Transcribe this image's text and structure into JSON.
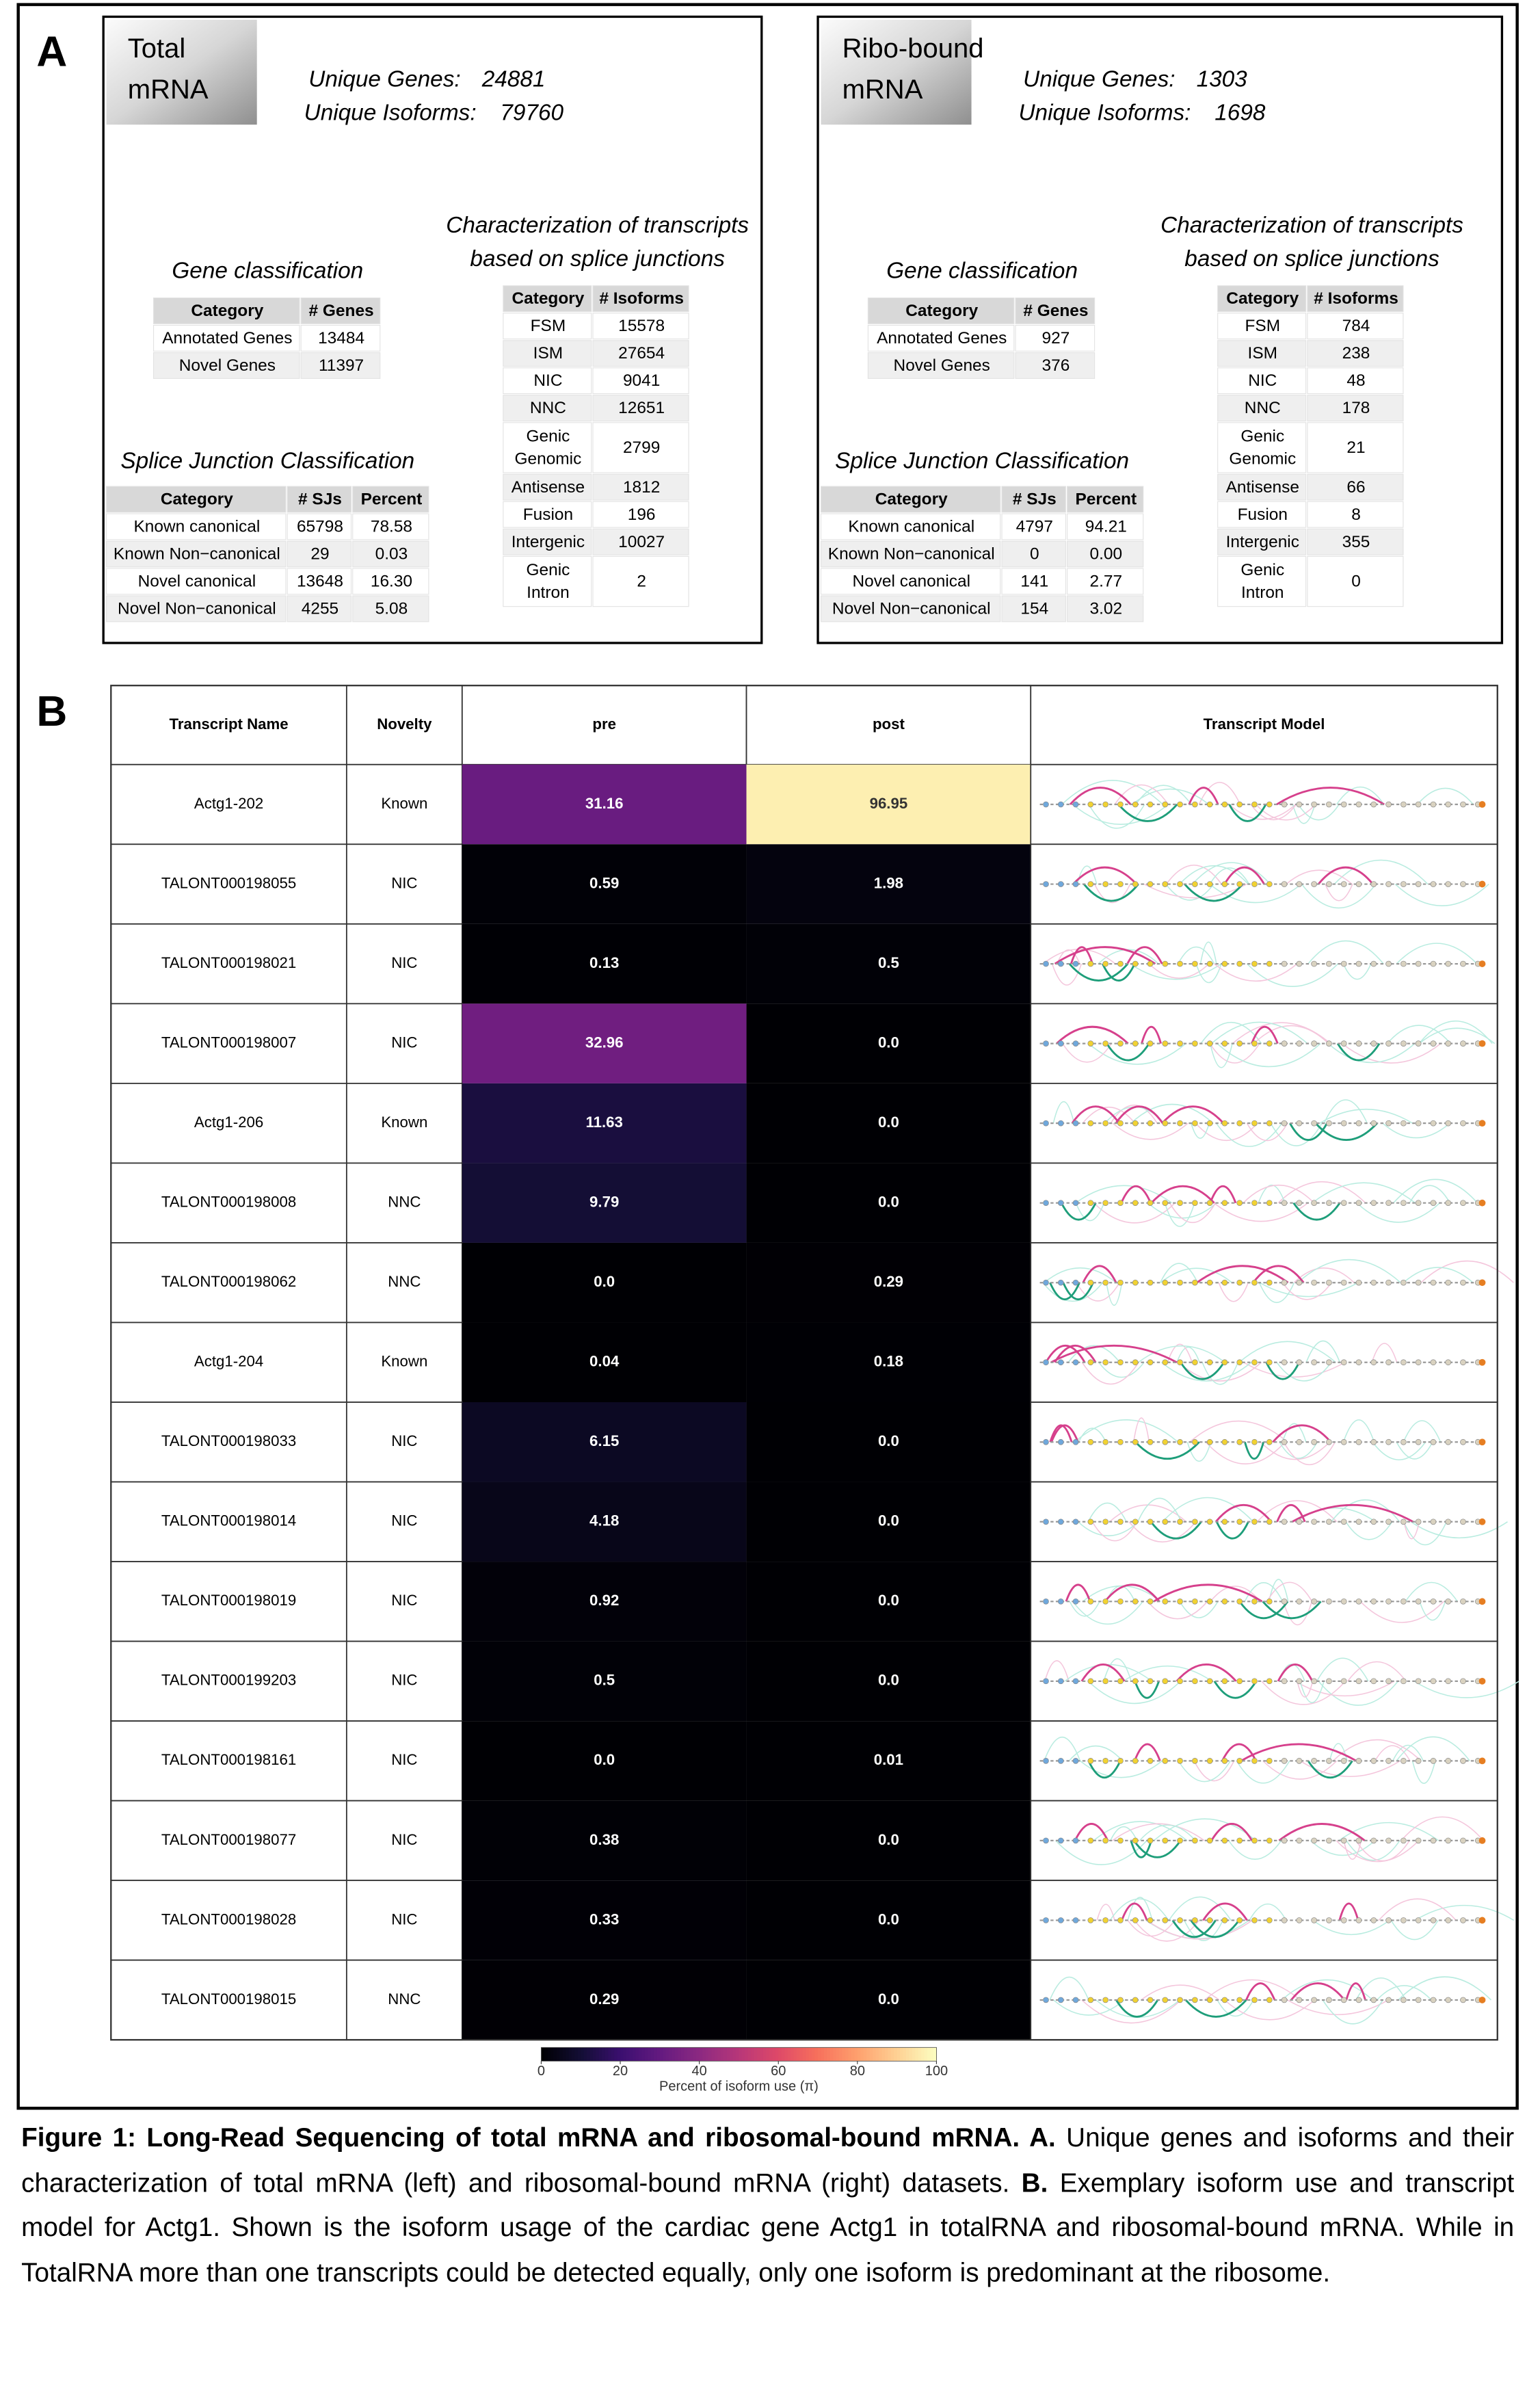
{
  "panel_a": {
    "label": "A",
    "datasets": [
      {
        "title": [
          "Total",
          "mRNA"
        ],
        "unique_genes": {
          "label": "Unique Genes:",
          "value": 24881
        },
        "unique_isoforms": {
          "label": "Unique Isoforms:",
          "value": 79760
        },
        "gene_classification": {
          "title": "Gene classification",
          "header": [
            "Category",
            "# Genes"
          ],
          "rows": [
            [
              "Annotated Genes",
              13484
            ],
            [
              "Novel Genes",
              11397
            ]
          ]
        },
        "splice_junction": {
          "title": "Splice Junction Classification",
          "header": [
            "Category",
            "# SJs",
            "Percent"
          ],
          "rows": [
            [
              "Known canonical",
              65798,
              78.58
            ],
            [
              "Known Non−canonical",
              29,
              0.03
            ],
            [
              "Novel canonical",
              13648,
              "16.30"
            ],
            [
              "Novel Non−canonical",
              4255,
              5.08
            ]
          ]
        },
        "characterization": {
          "title": [
            "Characterization of transcripts",
            "based on splice junctions"
          ],
          "header": [
            "Category",
            "# Isoforms"
          ],
          "rows": [
            [
              [
                "FSM"
              ],
              15578
            ],
            [
              [
                "ISM"
              ],
              27654
            ],
            [
              [
                "NIC"
              ],
              9041
            ],
            [
              [
                "NNC"
              ],
              12651
            ],
            [
              [
                "Genic",
                "Genomic"
              ],
              2799
            ],
            [
              [
                "Antisense"
              ],
              1812
            ],
            [
              [
                "Fusion"
              ],
              196
            ],
            [
              [
                "Intergenic"
              ],
              10027
            ],
            [
              [
                "Genic",
                "Intron"
              ],
              2
            ]
          ]
        }
      },
      {
        "title": [
          "Ribo-bound",
          "mRNA"
        ],
        "unique_genes": {
          "label": "Unique Genes:",
          "value": 1303
        },
        "unique_isoforms": {
          "label": "Unique Isoforms:",
          "value": 1698
        },
        "gene_classification": {
          "title": "Gene classification",
          "header": [
            "Category",
            "# Genes"
          ],
          "rows": [
            [
              "Annotated Genes",
              927
            ],
            [
              "Novel Genes",
              376
            ]
          ]
        },
        "splice_junction": {
          "title": "Splice Junction Classification",
          "header": [
            "Category",
            "# SJs",
            "Percent"
          ],
          "rows": [
            [
              "Known canonical",
              4797,
              94.21
            ],
            [
              "Known Non−canonical",
              0,
              "0.00"
            ],
            [
              "Novel canonical",
              141,
              2.77
            ],
            [
              "Novel Non−canonical",
              154,
              3.02
            ]
          ]
        },
        "characterization": {
          "title": [
            "Characterization of transcripts",
            "based on splice junctions"
          ],
          "header": [
            "Category",
            "# Isoforms"
          ],
          "rows": [
            [
              [
                "FSM"
              ],
              784
            ],
            [
              [
                "ISM"
              ],
              238
            ],
            [
              [
                "NIC"
              ],
              48
            ],
            [
              [
                "NNC"
              ],
              178
            ],
            [
              [
                "Genic",
                "Genomic"
              ],
              21
            ],
            [
              [
                "Antisense"
              ],
              66
            ],
            [
              [
                "Fusion"
              ],
              8
            ],
            [
              [
                "Intergenic"
              ],
              355
            ],
            [
              [
                "Genic",
                "Intron"
              ],
              0
            ]
          ]
        }
      }
    ]
  },
  "panel_b": {
    "label": "B",
    "header": [
      "Transcript Name",
      "Novelty",
      "pre",
      "post",
      "Transcript Model"
    ],
    "rows": [
      [
        "Actg1-202",
        "Known",
        "31.16",
        "96.95"
      ],
      [
        "TALONT000198055",
        "NIC",
        "0.59",
        "1.98"
      ],
      [
        "TALONT000198021",
        "NIC",
        "0.13",
        "0.5"
      ],
      [
        "TALONT000198007",
        "NIC",
        "32.96",
        "0.0"
      ],
      [
        "Actg1-206",
        "Known",
        "11.63",
        "0.0"
      ],
      [
        "TALONT000198008",
        "NNC",
        "9.79",
        "0.0"
      ],
      [
        "TALONT000198062",
        "NNC",
        "0.0",
        "0.29"
      ],
      [
        "Actg1-204",
        "Known",
        "0.04",
        "0.18"
      ],
      [
        "TALONT000198033",
        "NIC",
        "6.15",
        "0.0"
      ],
      [
        "TALONT000198014",
        "NIC",
        "4.18",
        "0.0"
      ],
      [
        "TALONT000198019",
        "NIC",
        "0.92",
        "0.0"
      ],
      [
        "TALONT000199203",
        "NIC",
        "0.5",
        "0.0"
      ],
      [
        "TALONT000198161",
        "NIC",
        "0.0",
        "0.01"
      ],
      [
        "TALONT000198077",
        "NIC",
        "0.38",
        "0.0"
      ],
      [
        "TALONT000198028",
        "NIC",
        "0.33",
        "0.0"
      ],
      [
        "TALONT000198015",
        "NNC",
        "0.29",
        "0.0"
      ]
    ],
    "colorbar": {
      "label": "Percent of isoform use (π)",
      "lim": [
        0,
        100
      ],
      "ticks": [
        0,
        20,
        40,
        60,
        80,
        100
      ],
      "colormap": "magma"
    }
  },
  "caption": [
    {
      "text": "Figure 1: Long-Read Sequencing of total mRNA and ribosomal-bound mRNA. A.",
      "bold": true
    },
    {
      "text": " Unique genes and isoforms and their characterization of total mRNA (left) and ribosomal-bound mRNA (right) datasets.  ",
      "bold": false
    },
    {
      "text": "B.",
      "bold": true
    },
    {
      "text": " Exemplary isoform use and transcript model for Actg1. Shown is the isoform usage of the cardiac gene Actg1 in totalRNA and ribosomal-bound mRNA. While in TotalRNA more than one transcripts could be detected equally, only one isoform is predominant at the ribosome.",
      "bold": false
    }
  ]
}
